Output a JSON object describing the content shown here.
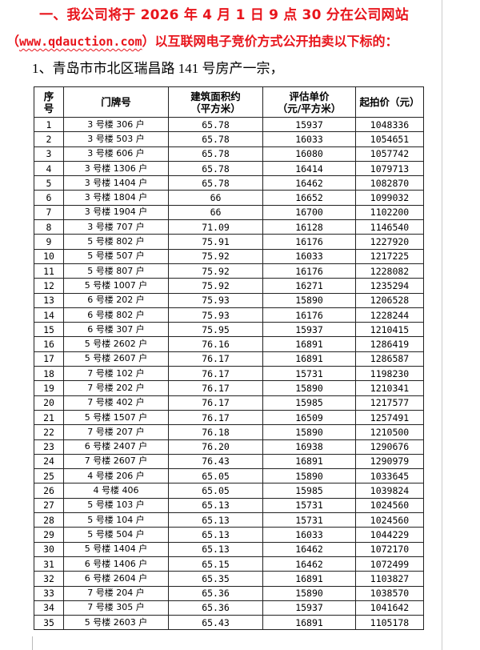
{
  "heading": {
    "line1": "一、我公司将于 2026 年 4 月 1 日 9 点 30 分在公司网站",
    "line2_open": "（",
    "line2_url": "www.qdauction.com",
    "line2_rest": "）以互联网电子竞价方式公开拍卖以下标的：",
    "item": "1、青岛市市北区瑞昌路 141 号房产一宗，",
    "color": "#e8141b"
  },
  "table": {
    "headers": [
      "序号",
      "门牌号",
      "建筑面积约（平方米）",
      "评估单价（元/平方米）",
      "起拍价（元）"
    ],
    "header_lines": [
      [
        "序",
        "号"
      ],
      [
        "门牌号"
      ],
      [
        "建筑面积约",
        "（平方米）"
      ],
      [
        "评估单价",
        "（元/平方米）"
      ],
      [
        "起拍价（元）"
      ]
    ],
    "rows": [
      [
        "1",
        "3 号楼 306 户",
        "65.78",
        "15937",
        "1048336"
      ],
      [
        "2",
        "3 号楼 503 户",
        "65.78",
        "16033",
        "1054651"
      ],
      [
        "3",
        "3 号楼 606 户",
        "65.78",
        "16080",
        "1057742"
      ],
      [
        "4",
        "3 号楼 1306 户",
        "65.78",
        "16414",
        "1079713"
      ],
      [
        "5",
        "3 号楼 1404 户",
        "65.78",
        "16462",
        "1082870"
      ],
      [
        "6",
        "3 号楼 1804 户",
        "66",
        "16652",
        "1099032"
      ],
      [
        "7",
        "3 号楼 1904 户",
        "66",
        "16700",
        "1102200"
      ],
      [
        "8",
        "3 号楼 707 户",
        "71.09",
        "16128",
        "1146540"
      ],
      [
        "9",
        "5 号楼 802 户",
        "75.91",
        "16176",
        "1227920"
      ],
      [
        "10",
        "5 号楼 507 户",
        "75.92",
        "16033",
        "1217225"
      ],
      [
        "11",
        "5 号楼 807 户",
        "75.92",
        "16176",
        "1228082"
      ],
      [
        "12",
        "5 号楼 1007 户",
        "75.92",
        "16271",
        "1235294"
      ],
      [
        "13",
        "6 号楼 202 户",
        "75.93",
        "15890",
        "1206528"
      ],
      [
        "14",
        "6 号楼 802 户",
        "75.93",
        "16176",
        "1228244"
      ],
      [
        "15",
        "6 号楼 307 户",
        "75.95",
        "15937",
        "1210415"
      ],
      [
        "16",
        "5 号楼 2602 户",
        "76.16",
        "16891",
        "1286419"
      ],
      [
        "17",
        "5 号楼 2607 户",
        "76.17",
        "16891",
        "1286587"
      ],
      [
        "18",
        "7 号楼 102 户",
        "76.17",
        "15731",
        "1198230"
      ],
      [
        "19",
        "7 号楼 202 户",
        "76.17",
        "15890",
        "1210341"
      ],
      [
        "20",
        "7 号楼 402 户",
        "76.17",
        "15985",
        "1217577"
      ],
      [
        "21",
        "5 号楼 1507 户",
        "76.17",
        "16509",
        "1257491"
      ],
      [
        "22",
        "7 号楼 207 户",
        "76.18",
        "15890",
        "1210500"
      ],
      [
        "23",
        "6 号楼 2407 户",
        "76.20",
        "16938",
        "1290676"
      ],
      [
        "24",
        "7 号楼 2607 户",
        "76.43",
        "16891",
        "1290979"
      ],
      [
        "25",
        "4 号楼 206 户",
        "65.05",
        "15890",
        "1033645"
      ],
      [
        "26",
        "4 号楼 406",
        "65.05",
        "15985",
        "1039824"
      ],
      [
        "27",
        "5 号楼 103 户",
        "65.13",
        "15731",
        "1024560"
      ],
      [
        "28",
        "5 号楼 104 户",
        "65.13",
        "15731",
        "1024560"
      ],
      [
        "29",
        "5 号楼 504 户",
        "65.13",
        "16033",
        "1044229"
      ],
      [
        "30",
        "5 号楼 1404 户",
        "65.13",
        "16462",
        "1072170"
      ],
      [
        "31",
        "6 号楼 1406 户",
        "65.15",
        "16462",
        "1072499"
      ],
      [
        "32",
        "6 号楼 2604 户",
        "65.35",
        "16891",
        "1103827"
      ],
      [
        "33",
        "7 号楼 204 户",
        "65.36",
        "15890",
        "1038570"
      ],
      [
        "34",
        "7 号楼 305 户",
        "65.36",
        "15937",
        "1041642"
      ],
      [
        "35",
        "5 号楼 2603 户",
        "65.43",
        "16891",
        "1105178"
      ]
    ]
  }
}
